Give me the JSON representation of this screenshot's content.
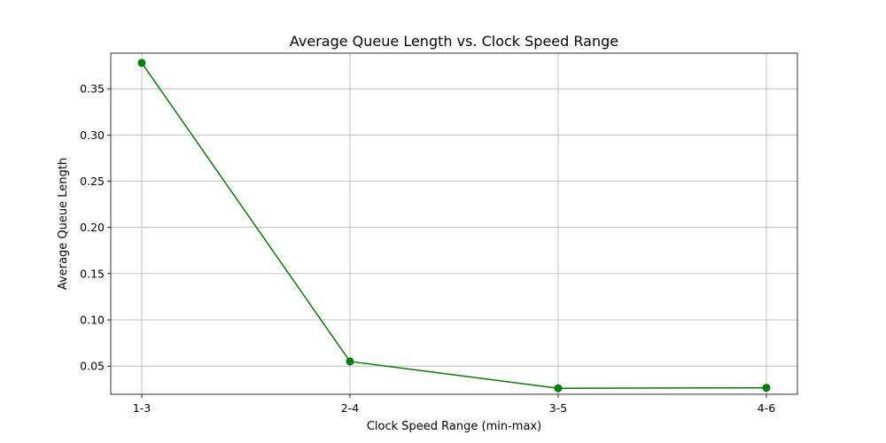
{
  "chart_data": {
    "type": "line",
    "title": "Average Queue Length vs. Clock Speed Range",
    "xlabel": "Clock Speed Range (min-max)",
    "ylabel": "Average Queue Length",
    "categories": [
      "1-3",
      "2-4",
      "3-5",
      "4-6"
    ],
    "series": [
      {
        "values": [
          0.378,
          0.055,
          0.026,
          0.0265
        ],
        "color": "#008000",
        "marker": "circle"
      }
    ],
    "ylim": [
      0.0195,
      0.3885
    ],
    "yticks": [
      0.05,
      0.1,
      0.15,
      0.2,
      0.25,
      0.3,
      0.35
    ],
    "ytick_labels": [
      "0.05",
      "0.10",
      "0.15",
      "0.20",
      "0.25",
      "0.30",
      "0.35"
    ],
    "grid": true,
    "legend": false
  }
}
